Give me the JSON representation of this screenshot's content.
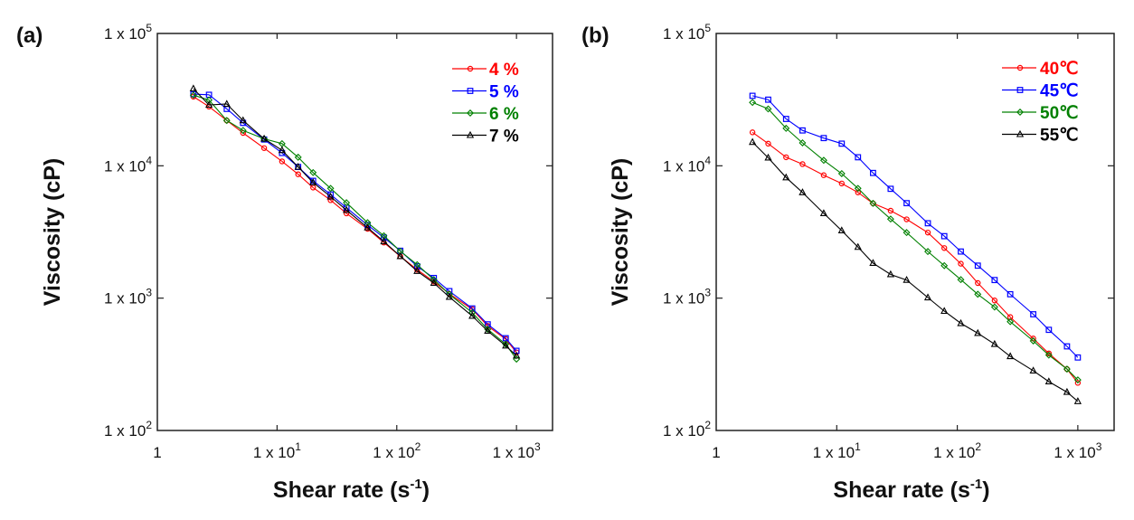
{
  "chart_data": [
    {
      "type": "line",
      "panel_label": "(a)",
      "xlabel": "Shear rate (s",
      "xlabel_exp": "-1",
      "xlabel_close": ")",
      "ylabel": "Viscosity (cP)",
      "x_scale": "log",
      "y_scale": "log",
      "xlim": [
        1,
        2000
      ],
      "ylim": [
        100,
        100000
      ],
      "grid": false,
      "legend_position": "top-right",
      "x_ticks": [
        {
          "value": 1,
          "base": "1",
          "exp": ""
        },
        {
          "value": 10,
          "base": "1 x 10",
          "exp": "1"
        },
        {
          "value": 100,
          "base": "1 x 10",
          "exp": "2"
        },
        {
          "value": 1000,
          "base": "1 x 10",
          "exp": "3"
        }
      ],
      "y_ticks": [
        {
          "value": 100000,
          "base": "1 x 10",
          "exp": "5"
        },
        {
          "value": 10000,
          "base": "1 x 10",
          "exp": "4"
        },
        {
          "value": 1000,
          "base": "1 x 10",
          "exp": "3"
        },
        {
          "value": 100,
          "base": "1 x 10",
          "exp": "2"
        }
      ],
      "x": [
        2,
        2.7,
        3.8,
        5.2,
        7.8,
        11,
        15,
        20,
        28,
        38,
        57,
        78,
        107,
        148,
        204,
        275,
        427,
        575,
        813,
        1000
      ],
      "series": [
        {
          "name": "4 %",
          "color": "#ff0000",
          "marker": "circle",
          "values": [
            33300,
            28000,
            22000,
            17700,
            13600,
            10800,
            8630,
            6850,
            5500,
            4370,
            3340,
            2630,
            2070,
            1640,
            1330,
            1080,
            823,
            617,
            490,
            389
          ]
        },
        {
          "name": "5 %",
          "color": "#0000ff",
          "marker": "square",
          "values": [
            34800,
            34400,
            26900,
            21100,
            15800,
            12500,
            9800,
            7700,
            6070,
            4820,
            3570,
            2870,
            2280,
            1740,
            1420,
            1130,
            836,
            634,
            498,
            400
          ]
        },
        {
          "name": "6 %",
          "color": "#008000",
          "marker": "diamond",
          "values": [
            34200,
            31400,
            22000,
            18500,
            16000,
            14700,
            11600,
            8890,
            6750,
            5260,
            3720,
            2960,
            2260,
            1790,
            1380,
            1070,
            777,
            582,
            449,
            346
          ]
        },
        {
          "name": "7 %",
          "color": "#000000",
          "marker": "triangle",
          "values": [
            38300,
            28800,
            29300,
            22000,
            16000,
            13100,
            9800,
            7480,
            5840,
            4630,
            3410,
            2680,
            2070,
            1600,
            1300,
            1020,
            733,
            565,
            437,
            367
          ]
        }
      ]
    },
    {
      "type": "line",
      "panel_label": "(b)",
      "xlabel": "Shear rate (s",
      "xlabel_exp": "-1",
      "xlabel_close": ")",
      "ylabel": "Viscosity (cP)",
      "x_scale": "log",
      "y_scale": "log",
      "xlim": [
        1,
        2000
      ],
      "ylim": [
        100,
        100000
      ],
      "grid": false,
      "legend_position": "top-right",
      "x_ticks": [
        {
          "value": 1,
          "base": "1",
          "exp": ""
        },
        {
          "value": 10,
          "base": "1 x 10",
          "exp": "1"
        },
        {
          "value": 100,
          "base": "1 x 10",
          "exp": "2"
        },
        {
          "value": 1000,
          "base": "1 x 10",
          "exp": "3"
        }
      ],
      "y_ticks": [
        {
          "value": 100000,
          "base": "1 x 10",
          "exp": "5"
        },
        {
          "value": 10000,
          "base": "1 x 10",
          "exp": "4"
        },
        {
          "value": 1000,
          "base": "1 x 10",
          "exp": "3"
        },
        {
          "value": 100,
          "base": "1 x 10",
          "exp": "2"
        }
      ],
      "x": [
        2,
        2.7,
        3.8,
        5.2,
        7.8,
        11,
        15,
        20,
        28,
        38,
        57,
        78,
        107,
        148,
        204,
        275,
        427,
        575,
        813,
        1000
      ],
      "series": [
        {
          "name": "40℃",
          "color": "#ff0000",
          "marker": "circle",
          "values": [
            17900,
            14700,
            11600,
            10300,
            8490,
            7350,
            6290,
            5200,
            4580,
            3940,
            3130,
            2390,
            1820,
            1300,
            960,
            719,
            495,
            382,
            291,
            229
          ]
        },
        {
          "name": "45℃",
          "color": "#0000ff",
          "marker": "square",
          "values": [
            33800,
            31600,
            22600,
            18500,
            16200,
            14700,
            11600,
            8830,
            6700,
            5220,
            3680,
            2940,
            2250,
            1760,
            1370,
            1070,
            755,
            576,
            432,
            356
          ]
        },
        {
          "name": "50℃",
          "color": "#008000",
          "marker": "diamond",
          "values": [
            30100,
            26900,
            19200,
            14900,
            11000,
            8730,
            6750,
            5200,
            3960,
            3130,
            2250,
            1760,
            1380,
            1070,
            856,
            664,
            475,
            371,
            291,
            241
          ]
        },
        {
          "name": "55℃",
          "color": "#000000",
          "marker": "triangle",
          "values": [
            15100,
            11500,
            8150,
            6290,
            4370,
            3240,
            2430,
            1840,
            1510,
            1370,
            1010,
            798,
            645,
            543,
            449,
            363,
            283,
            234,
            195,
            166
          ]
        }
      ]
    }
  ]
}
